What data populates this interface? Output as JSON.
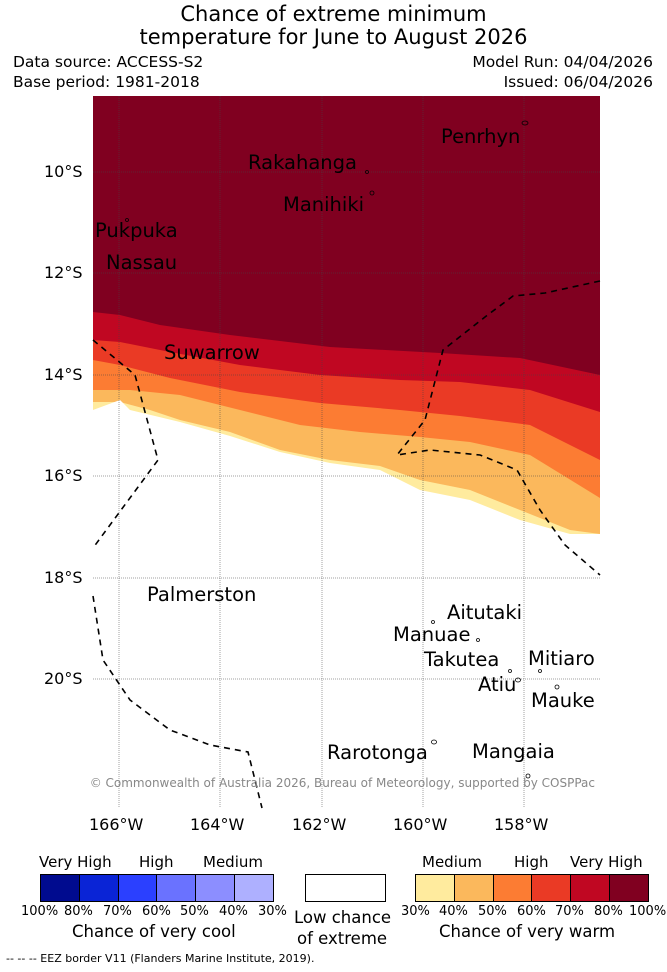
{
  "title_line1": "Chance of extreme minimum",
  "title_line2": "temperature for June to August 2026",
  "data_source": "Data source: ACCESS-S2",
  "base_period": "Base period: 1981-2018",
  "model_run": "Model Run: 04/04/2026",
  "issued": "Issued: 06/04/2026",
  "lat_labels": [
    "10°S",
    "12°S",
    "14°S",
    "16°S",
    "18°S",
    "20°S"
  ],
  "lon_labels": [
    "166°W",
    "164°W",
    "162°W",
    "160°W",
    "158°W"
  ],
  "places": [
    "Penrhyn",
    "Rakahanga",
    "Manihiki",
    "Pukpuka",
    "Nassau",
    "Suwarrow",
    "Palmerston",
    "Aitutaki",
    "Manuae",
    "Takutea",
    "Mitiaro",
    "Atiu",
    "Mauke",
    "Rarotonga",
    "Mangaia"
  ],
  "credit": "© Commonwealth of Australia 2026, Bureau of Meteorology, supported by COSPPac",
  "legend": {
    "cool": {
      "captions": [
        "Very High",
        "High",
        "Medium"
      ],
      "colors": [
        "#000b8f",
        "#0a24d6",
        "#2b40ff",
        "#6a72ff",
        "#8c8eff",
        "#aeb0ff"
      ],
      "percents": [
        "100%",
        "80%",
        "70%",
        "60%",
        "50%",
        "40%",
        "30%"
      ],
      "title": "Chance of very cool"
    },
    "low": {
      "color": "#ffffff",
      "title_line1": "Low chance",
      "title_line2": "of extreme"
    },
    "warm": {
      "captions": [
        "Medium",
        "High",
        "Very High"
      ],
      "colors": [
        "#ffeb9e",
        "#fbb85c",
        "#fc7c33",
        "#ea3a25",
        "#c00722",
        "#800020"
      ],
      "percents": [
        "30%",
        "40%",
        "50%",
        "60%",
        "70%",
        "80%",
        "100%"
      ],
      "title": "Chance of very warm"
    }
  },
  "footnote": "--  --  -- EEZ border V11 (Flanders Marine Institute, 2019)."
}
